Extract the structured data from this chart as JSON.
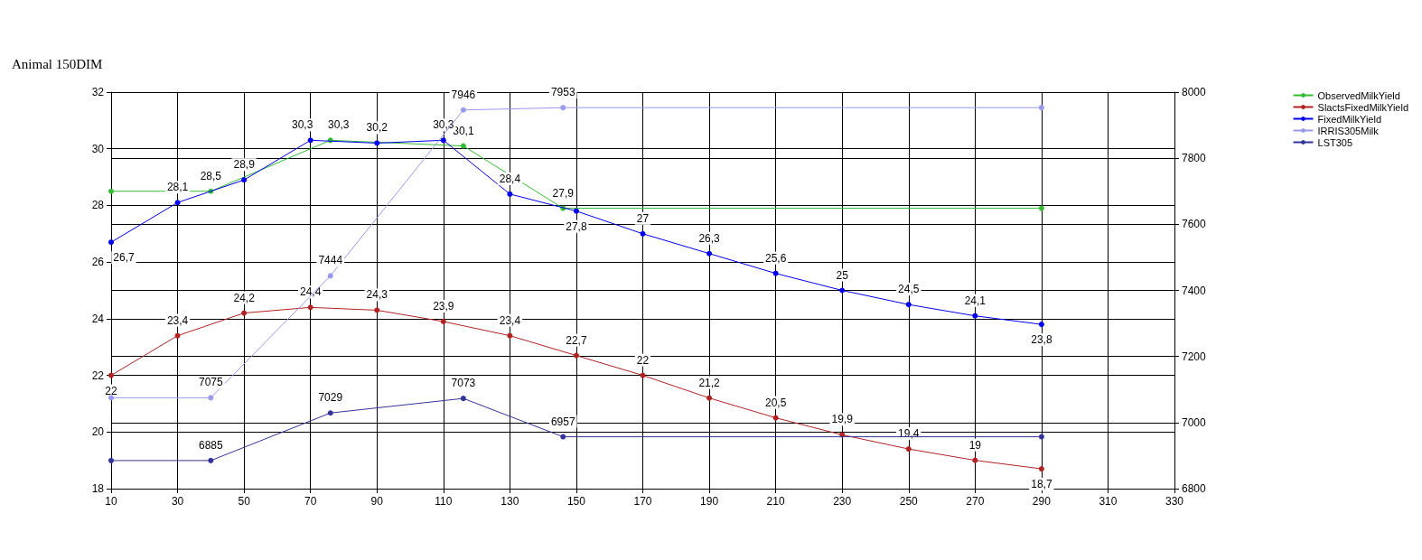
{
  "chart_data": {
    "type": "line",
    "title": "Animal 150DIM",
    "xlim": [
      10,
      330
    ],
    "xticks": [
      10,
      30,
      50,
      70,
      90,
      110,
      130,
      150,
      170,
      190,
      210,
      230,
      250,
      270,
      290,
      310,
      330
    ],
    "ylim": [
      18,
      32
    ],
    "yticks": [
      18,
      20,
      22,
      24,
      26,
      28,
      30,
      32
    ],
    "y2lim": [
      6800,
      8000
    ],
    "y2ticks": [
      6800,
      7000,
      7200,
      7400,
      7600,
      7800,
      8000
    ],
    "grid": true,
    "legend": "right",
    "marker": "circle",
    "line_style": "solid",
    "series": [
      {
        "name": "ObservedMilkYield",
        "color": "#33bb33",
        "x": [
          10,
          40,
          76,
          116,
          146,
          290
        ],
        "values": [
          28.5,
          28.5,
          30.3,
          30.1,
          27.9,
          27.9
        ],
        "value_labels": [
          null,
          "28,5",
          "30,3",
          "30,1",
          "27,9",
          null
        ]
      },
      {
        "name": "SlactsFixedMilkYield",
        "color": "#b22222",
        "x": [
          10,
          30,
          50,
          70,
          90,
          110,
          130,
          150,
          170,
          190,
          210,
          230,
          250,
          270,
          290
        ],
        "values": [
          22,
          23.4,
          24.2,
          24.4,
          24.3,
          23.9,
          23.4,
          22.7,
          22,
          21.2,
          20.5,
          19.9,
          19.4,
          19,
          18.7
        ],
        "value_labels": [
          "22",
          "23,4",
          "24,2",
          "24,4",
          "24,3",
          "23,9",
          "23,4",
          "22,7",
          "22",
          "21,2",
          "20,5",
          "19,9",
          "19,4",
          "19",
          "18,7"
        ]
      },
      {
        "name": "FixedMilkYield",
        "color": "#0000ee",
        "x": [
          10,
          30,
          50,
          70,
          90,
          110,
          130,
          150,
          170,
          190,
          210,
          230,
          250,
          270,
          290
        ],
        "values": [
          26.7,
          28.1,
          28.9,
          30.3,
          30.2,
          30.3,
          28.4,
          27.8,
          27,
          26.3,
          25.6,
          25,
          24.5,
          24.1,
          23.8
        ],
        "value_labels": [
          "26,7",
          "28,1",
          "28,9",
          "30,3",
          "30,2",
          "30,3",
          "28,4",
          "27,8",
          "27",
          "26,3",
          "25,6",
          "25",
          "24,5",
          "24,1",
          "23,8"
        ]
      },
      {
        "name": "IRRIS305Milk",
        "color": "#9999ee",
        "axis": "y2",
        "x": [
          10,
          40,
          76,
          116,
          146,
          290
        ],
        "values": [
          7075,
          7075,
          7444,
          7946,
          7953,
          7953
        ],
        "value_labels": [
          null,
          "7075",
          "7444",
          "7946",
          "7953",
          null
        ]
      },
      {
        "name": "LST305",
        "color": "#333399",
        "axis": "y2",
        "x": [
          10,
          40,
          76,
          116,
          146,
          290
        ],
        "values": [
          6885,
          6885,
          7029,
          7073,
          6957,
          6957
        ],
        "value_labels": [
          null,
          "6885",
          "7029",
          "7073",
          "6957",
          null
        ]
      }
    ]
  }
}
